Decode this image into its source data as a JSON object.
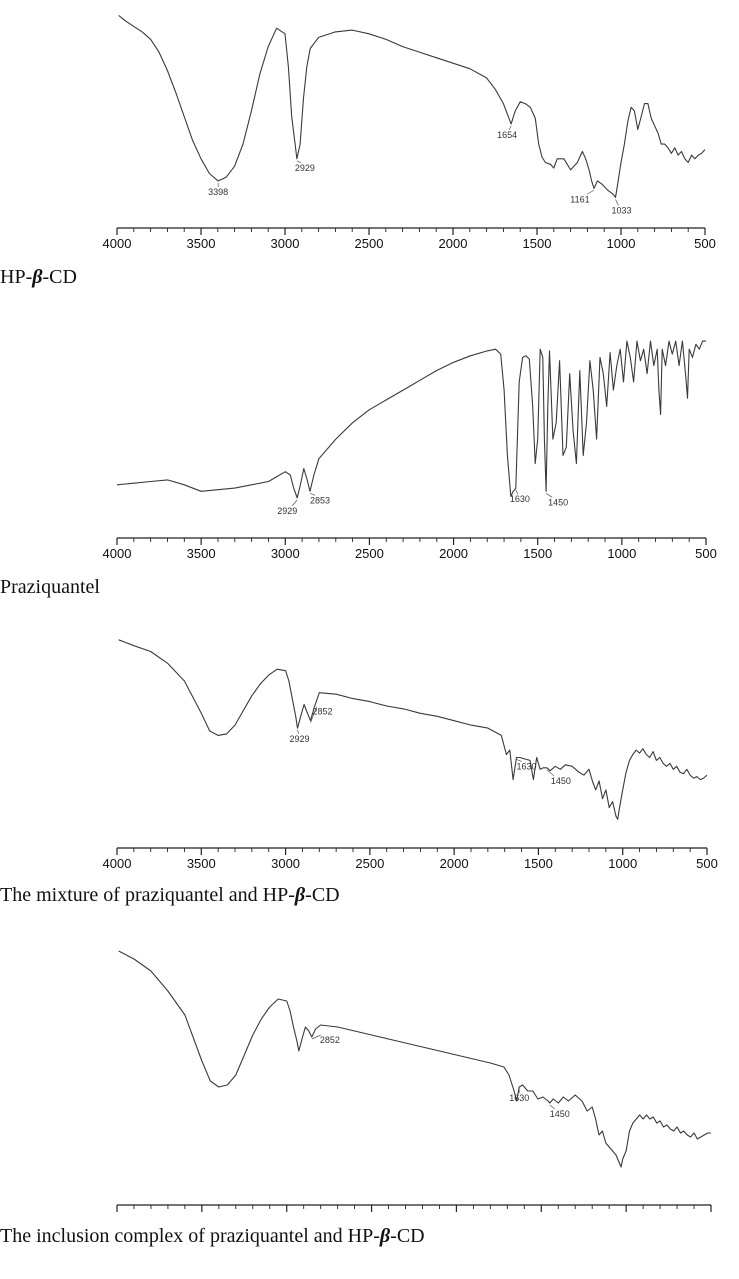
{
  "colors": {
    "spectrum": "#3a3a3a",
    "axis": "#222222",
    "label": "#333333"
  },
  "charts": [
    {
      "caption_parts": [
        "HP-",
        "β",
        "-CD"
      ],
      "chart_data": {
        "type": "line",
        "title": "",
        "xlabel": "",
        "ylabel": "",
        "xlim": [
          4000,
          500
        ],
        "xticks": [
          "4000",
          "3500",
          "3000",
          "2500",
          "2000",
          "1500",
          "1000",
          "500"
        ],
        "grid": false,
        "series": [
          {
            "x": [
              3990,
              3950,
              3900,
              3850,
              3800,
              3750,
              3700,
              3650,
              3600,
              3550,
              3500,
              3450,
              3398,
              3350,
              3300,
              3250,
              3200,
              3150,
              3100,
              3050,
              3000,
              2980,
              2960,
              2940,
              2929,
              2910,
              2890,
              2870,
              2850,
              2800,
              2700,
              2600,
              2500,
              2400,
              2300,
              2200,
              2100,
              2000,
              1900,
              1800,
              1750,
              1700,
              1675,
              1654,
              1630,
              1600,
              1570,
              1540,
              1510,
              1490,
              1470,
              1450,
              1420,
              1400,
              1380,
              1340,
              1300,
              1260,
              1230,
              1210,
              1190,
              1175,
              1161,
              1140,
              1110,
              1080,
              1050,
              1040,
              1033,
              1020,
              1000,
              980,
              960,
              940,
              920,
              900,
              880,
              860,
              840,
              820,
              800,
              780,
              760,
              740,
              720,
              700,
              680,
              660,
              640,
              620,
              600,
              580,
              560,
              540,
              520,
              500
            ],
            "y": [
              100,
              97,
              94,
              91,
              87,
              80,
              70,
              58,
              45,
              32,
              22,
              14,
              10,
              12,
              18,
              30,
              48,
              68,
              83,
              93,
              90,
              72,
              45,
              30,
              22,
              30,
              55,
              72,
              82,
              88,
              91,
              92,
              90,
              87,
              83,
              80,
              77,
              74,
              71,
              66,
              60,
              52,
              46,
              41,
              48,
              53,
              52,
              50,
              44,
              30,
              23,
              20,
              19,
              17,
              22,
              22,
              16,
              20,
              26,
              22,
              16,
              10,
              6,
              10,
              8,
              5,
              3,
              2,
              1,
              8,
              20,
              30,
              42,
              50,
              48,
              38,
              45,
              52,
              52,
              44,
              40,
              36,
              30,
              30,
              28,
              25,
              28,
              24,
              26,
              22,
              20,
              24,
              22,
              24,
              25,
              27
            ],
            "ylim": [
              -8,
              104
            ]
          }
        ],
        "annotations": [
          {
            "x": 3398,
            "text": "3398"
          },
          {
            "x": 2929,
            "text": "2929"
          },
          {
            "x": 1654,
            "text": "1654"
          },
          {
            "x": 1161,
            "text": "1161"
          },
          {
            "x": 1033,
            "text": "1033"
          }
        ]
      }
    },
    {
      "caption_parts": [
        "Praziquantel"
      ],
      "chart_data": {
        "type": "line",
        "title": "",
        "xlabel": "",
        "ylabel": "",
        "xlim": [
          4000,
          500
        ],
        "xticks": [
          "4000",
          "3500",
          "3000",
          "2500",
          "2000",
          "1500",
          "1000",
          "500"
        ],
        "grid": false,
        "series": [
          {
            "x": [
              4000,
              3900,
              3800,
              3700,
              3600,
              3500,
              3400,
              3300,
              3200,
              3100,
              3050,
              3000,
              2970,
              2950,
              2929,
              2910,
              2890,
              2870,
              2853,
              2830,
              2800,
              2700,
              2600,
              2500,
              2400,
              2300,
              2200,
              2100,
              2000,
              1900,
              1800,
              1750,
              1720,
              1700,
              1680,
              1660,
              1645,
              1630,
              1610,
              1590,
              1570,
              1550,
              1530,
              1515,
              1500,
              1485,
              1470,
              1460,
              1450,
              1440,
              1430,
              1410,
              1390,
              1370,
              1350,
              1330,
              1310,
              1290,
              1270,
              1250,
              1230,
              1210,
              1190,
              1170,
              1150,
              1130,
              1110,
              1090,
              1070,
              1050,
              1030,
              1010,
              990,
              970,
              950,
              930,
              910,
              890,
              870,
              850,
              830,
              810,
              790,
              780,
              770,
              760,
              740,
              720,
              700,
              680,
              660,
              640,
              620,
              610,
              600,
              580,
              560,
              540,
              520,
              500
            ],
            "y": [
              12,
              13,
              14,
              15,
              12,
              8,
              9,
              10,
              12,
              14,
              17,
              20,
              18,
              10,
              4,
              12,
              22,
              15,
              8,
              18,
              28,
              40,
              50,
              58,
              64,
              70,
              76,
              82,
              87,
              91,
              94,
              95,
              92,
              70,
              30,
              5,
              8,
              10,
              75,
              90,
              91,
              89,
              60,
              25,
              40,
              95,
              90,
              40,
              8,
              60,
              94,
              40,
              50,
              88,
              30,
              35,
              80,
              45,
              25,
              82,
              30,
              50,
              88,
              70,
              40,
              90,
              80,
              60,
              93,
              70,
              85,
              95,
              75,
              100,
              90,
              75,
              100,
              88,
              95,
              80,
              100,
              85,
              95,
              70,
              55,
              95,
              85,
              100,
              92,
              100,
              85,
              100,
              78,
              65,
              95,
              90,
              98,
              95,
              100,
              100
            ],
            "ylim": [
              -12,
              108
            ]
          }
        ],
        "annotations": [
          {
            "x": 2929,
            "text": "2929"
          },
          {
            "x": 2853,
            "text": "2853"
          },
          {
            "x": 1630,
            "text": "1630"
          },
          {
            "x": 1450,
            "text": "1450"
          }
        ]
      }
    },
    {
      "caption_parts": [
        "The mixture of praziquantel and HP-",
        "β",
        "-CD"
      ],
      "chart_data": {
        "type": "line",
        "title": "",
        "xlabel": "",
        "ylabel": "",
        "xlim": [
          4000,
          500
        ],
        "xticks": [
          "4000",
          "3500",
          "3000",
          "2500",
          "2000",
          "1500",
          "1000",
          "500"
        ],
        "grid": false,
        "series": [
          {
            "x": [
              3990,
              3900,
              3800,
              3700,
              3600,
              3500,
              3450,
              3400,
              3350,
              3300,
              3250,
              3200,
              3150,
              3100,
              3050,
              3000,
              2980,
              2960,
              2940,
              2929,
              2910,
              2890,
              2870,
              2852,
              2830,
              2800,
              2700,
              2600,
              2500,
              2400,
              2300,
              2200,
              2100,
              2000,
              1900,
              1800,
              1720,
              1690,
              1670,
              1650,
              1630,
              1610,
              1580,
              1550,
              1530,
              1510,
              1490,
              1470,
              1450,
              1430,
              1400,
              1370,
              1340,
              1300,
              1260,
              1230,
              1200,
              1180,
              1160,
              1140,
              1120,
              1100,
              1080,
              1060,
              1040,
              1030,
              1020,
              1000,
              980,
              960,
              940,
              920,
              900,
              880,
              860,
              840,
              820,
              800,
              780,
              760,
              740,
              720,
              700,
              680,
              660,
              640,
              620,
              600,
              580,
              560,
              540,
              520,
              500
            ],
            "y": [
              100,
              96,
              92,
              84,
              72,
              50,
              38,
              35,
              36,
              42,
              52,
              62,
              70,
              76,
              80,
              79,
              72,
              60,
              48,
              40,
              48,
              56,
              50,
              45,
              54,
              64,
              63,
              60,
              58,
              55,
              53,
              50,
              48,
              45,
              42,
              40,
              35,
              22,
              25,
              5,
              20,
              20,
              19,
              18,
              5,
              20,
              12,
              13,
              13,
              11,
              14,
              12,
              15,
              14,
              10,
              8,
              12,
              4,
              -2,
              4,
              -8,
              -2,
              -14,
              -10,
              -20,
              -22,
              -15,
              -2,
              10,
              18,
              22,
              25,
              23,
              26,
              22,
              20,
              24,
              18,
              20,
              16,
              14,
              16,
              12,
              14,
              10,
              9,
              12,
              8,
              6,
              7,
              5,
              6,
              8
            ],
            "ylim": [
              -32,
              108
            ]
          }
        ],
        "annotations": [
          {
            "x": 2852,
            "text": "2852"
          },
          {
            "x": 2929,
            "text": "2929"
          },
          {
            "x": 1630,
            "text": "1630"
          },
          {
            "x": 1450,
            "text": "1450"
          }
        ]
      }
    },
    {
      "caption_parts": [
        "The inclusion complex of praziquantel and HP-",
        "β",
        "-CD"
      ],
      "chart_data": {
        "type": "line",
        "title": "",
        "xlabel": "",
        "ylabel": "",
        "xlim": [
          4000,
          500
        ],
        "xticks": [
          "4000",
          "3500",
          "3000",
          "2500",
          "2000",
          "1500",
          "1000",
          "500"
        ],
        "grid": false,
        "series": [
          {
            "x": [
              3990,
              3900,
              3800,
              3700,
              3600,
              3500,
              3450,
              3400,
              3350,
              3300,
              3250,
              3200,
              3150,
              3100,
              3050,
              3000,
              2980,
              2960,
              2940,
              2929,
              2910,
              2890,
              2870,
              2852,
              2830,
              2800,
              2700,
              2600,
              2500,
              2400,
              2300,
              2200,
              2100,
              2000,
              1900,
              1800,
              1720,
              1690,
              1660,
              1645,
              1630,
              1610,
              1580,
              1550,
              1520,
              1490,
              1460,
              1450,
              1430,
              1400,
              1370,
              1340,
              1300,
              1260,
              1230,
              1200,
              1180,
              1160,
              1140,
              1120,
              1100,
              1080,
              1060,
              1040,
              1030,
              1020,
              1000,
              980,
              960,
              940,
              920,
              900,
              880,
              860,
              840,
              820,
              800,
              780,
              760,
              740,
              720,
              700,
              680,
              660,
              640,
              620,
              600,
              580,
              560,
              540,
              520,
              500
            ],
            "y": [
              100,
              96,
              90,
              80,
              68,
              45,
              35,
              32,
              33,
              38,
              48,
              58,
              66,
              72,
              76,
              75,
              70,
              62,
              55,
              50,
              56,
              62,
              60,
              57,
              61,
              63,
              62,
              60,
              58,
              56,
              54,
              52,
              50,
              48,
              46,
              44,
              42,
              38,
              30,
              25,
              32,
              33,
              30,
              30,
              26,
              27,
              25,
              24,
              26,
              24,
              27,
              25,
              28,
              25,
              20,
              22,
              16,
              8,
              10,
              4,
              2,
              0,
              -2,
              -6,
              -8,
              -4,
              0,
              10,
              14,
              16,
              18,
              16,
              18,
              16,
              17,
              14,
              15,
              12,
              13,
              11,
              10,
              12,
              9,
              10,
              8,
              7,
              9,
              6,
              7,
              8,
              9,
              9
            ],
            "ylim": [
              -20,
              108
            ]
          }
        ],
        "annotations": [
          {
            "x": 2852,
            "text": "2852"
          },
          {
            "x": 1630,
            "text": "1630"
          },
          {
            "x": 1450,
            "text": "1450"
          }
        ]
      }
    }
  ]
}
